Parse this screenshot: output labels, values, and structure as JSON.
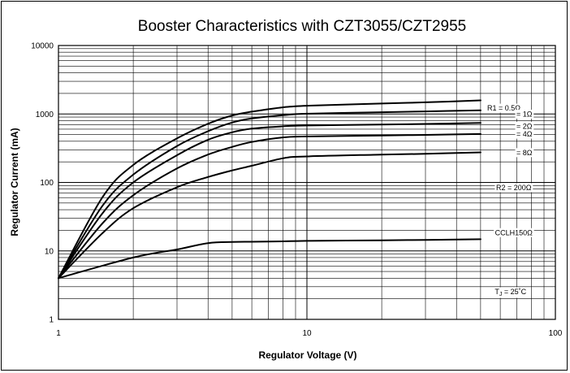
{
  "chart_data": {
    "type": "line",
    "title": "Booster Characteristics with CZT3055/CZT2955",
    "xlabel": "Regulator Voltage (V)",
    "ylabel": "Regulator Current (mA)",
    "x_scale": "log",
    "y_scale": "log",
    "xlim": [
      1,
      100
    ],
    "ylim": [
      1,
      10000
    ],
    "x_ticks": [
      "1",
      "10",
      "100"
    ],
    "y_ticks": [
      "1",
      "10",
      "100",
      "1000",
      "10000"
    ],
    "grid": true,
    "series": [
      {
        "name": "R1 = 0.5Ω",
        "x": [
          1,
          1.5,
          2,
          3,
          4,
          5,
          6,
          8,
          10,
          20,
          30,
          50
        ],
        "y": [
          4,
          60,
          180,
          440,
          720,
          950,
          1080,
          1250,
          1320,
          1420,
          1480,
          1580
        ]
      },
      {
        "name": "= 1Ω",
        "x": [
          1,
          1.5,
          2,
          3,
          4,
          5,
          6,
          8,
          10,
          20,
          30,
          50
        ],
        "y": [
          4,
          45,
          130,
          340,
          560,
          750,
          860,
          960,
          1010,
          1060,
          1090,
          1130
        ]
      },
      {
        "name": "= 2Ω",
        "x": [
          1,
          1.5,
          2,
          3,
          4,
          5,
          6,
          8,
          10,
          20,
          30,
          50
        ],
        "y": [
          4,
          35,
          100,
          250,
          420,
          540,
          610,
          660,
          680,
          700,
          715,
          740
        ]
      },
      {
        "name": "= 4Ω",
        "x": [
          1,
          1.5,
          2,
          3,
          4,
          5,
          6,
          8,
          10,
          20,
          30,
          50
        ],
        "y": [
          4,
          25,
          65,
          160,
          255,
          330,
          390,
          455,
          470,
          485,
          495,
          510
        ]
      },
      {
        "name": "= 8Ω",
        "x": [
          1,
          1.5,
          2,
          3,
          4,
          5,
          6,
          8,
          10,
          20,
          30,
          50
        ],
        "y": [
          4,
          18,
          42,
          85,
          120,
          150,
          175,
          225,
          240,
          255,
          262,
          275
        ]
      },
      {
        "name": "CCLH150Ω",
        "x": [
          1,
          2,
          3,
          4,
          5,
          6,
          8,
          10,
          20,
          30,
          50
        ],
        "y": [
          4,
          8,
          10.5,
          13,
          13.5,
          13.6,
          13.8,
          14,
          14.3,
          14.5,
          14.8
        ]
      }
    ],
    "annotations": [
      {
        "text": "R2 = 200Ω"
      },
      {
        "text": "T",
        "sub": "J",
        "rest": " = 25˚C"
      }
    ]
  }
}
